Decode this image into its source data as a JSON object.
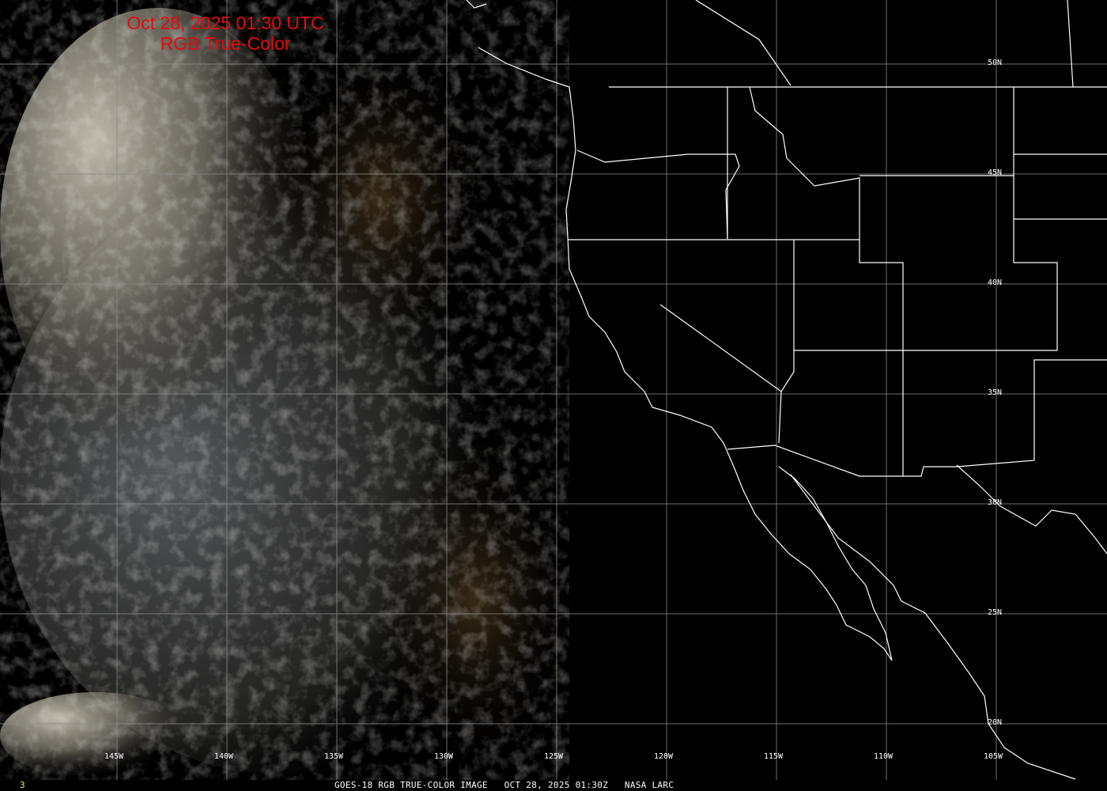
{
  "title": {
    "line1": "Oct 28, 2025 01:30 UTC",
    "line2": "RGB True-Color",
    "color": "#e8090f"
  },
  "latitude_labels": [
    "50N",
    "45N",
    "40N",
    "35N",
    "30N",
    "25N",
    "20N"
  ],
  "longitude_labels": [
    "145W",
    "140W",
    "135W",
    "130W",
    "125W",
    "120W",
    "115W",
    "110W",
    "105W"
  ],
  "footer": {
    "frame": "3",
    "caption": "GOES-18 RGB TRUE-COLOR IMAGE   OCT 28, 2025 01:30Z   NASA LARC"
  },
  "colors": {
    "grid": "#8a8a8a",
    "boundaries": "#ffffff",
    "frame": "#e8e85a"
  }
}
